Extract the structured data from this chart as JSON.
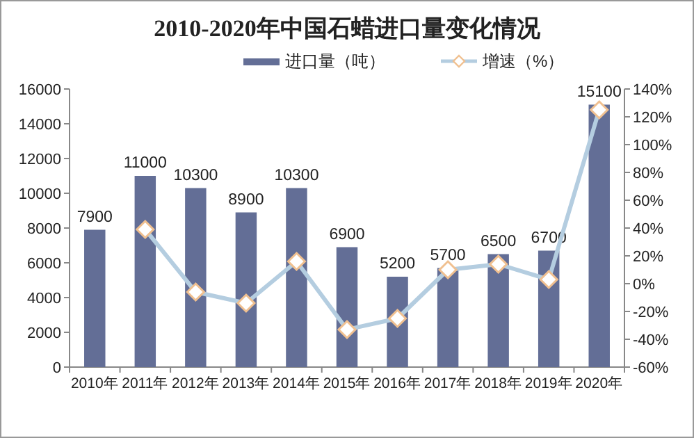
{
  "chart_data": {
    "type": "bar",
    "title": "2010-2020年中国石蜡进口量变化情况",
    "categories": [
      "2010年",
      "2011年",
      "2012年",
      "2013年",
      "2014年",
      "2015年",
      "2016年",
      "2017年",
      "2018年",
      "2019年",
      "2020年"
    ],
    "series": [
      {
        "name": "进口量（吨）",
        "color": "#636e96",
        "values": [
          7900,
          11000,
          10300,
          8900,
          10300,
          6900,
          5200,
          5700,
          6500,
          6700,
          15100
        ],
        "value_labels": [
          "7900",
          "11000",
          "10300",
          "8900",
          "10300",
          "6900",
          "5200",
          "5700",
          "6500",
          "6700",
          "15100"
        ]
      },
      {
        "name": "增速（%）",
        "type": "line",
        "axis": "y2",
        "color": "#b4cde0",
        "marker": "diamond",
        "values": [
          null,
          39,
          -6,
          -14,
          16,
          -33,
          -25,
          10,
          14,
          3,
          125
        ]
      }
    ],
    "ylim": [
      0,
      16000
    ],
    "yticks": [
      0,
      2000,
      4000,
      6000,
      8000,
      10000,
      12000,
      14000,
      16000
    ],
    "y2lim": [
      -60,
      140
    ],
    "y2ticks": [
      {
        "value": -60,
        "label": "-60%"
      },
      {
        "value": -40,
        "label": "-40%"
      },
      {
        "value": -20,
        "label": "-20%"
      },
      {
        "value": 0,
        "label": "0%"
      },
      {
        "value": 20,
        "label": "20%"
      },
      {
        "value": 40,
        "label": "40%"
      },
      {
        "value": 60,
        "label": "60%"
      },
      {
        "value": 80,
        "label": "80%"
      },
      {
        "value": 100,
        "label": "100%"
      },
      {
        "value": 120,
        "label": "120%"
      },
      {
        "value": 140,
        "label": "140%"
      }
    ],
    "grid": false,
    "legend": "top"
  }
}
